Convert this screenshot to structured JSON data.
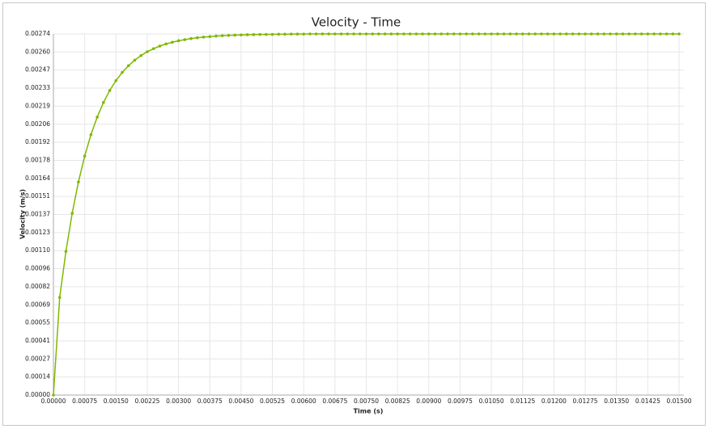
{
  "chart_data": {
    "type": "line",
    "title": "Velocity - Time",
    "x_label": "Time (s)",
    "y_label": "Velocity (m/s)",
    "grid": true,
    "xlim": [
      0,
      0.015
    ],
    "ylim": [
      0,
      0.00274
    ],
    "xticks": [
      {
        "value": 0,
        "label": "0.00000"
      },
      0.00075,
      {
        "value": 0.0015,
        "label": "0.00150"
      },
      0.00225,
      {
        "value": 0.003,
        "label": "0.00300"
      },
      0.00375,
      {
        "value": 0.0045,
        "label": "0.00450"
      },
      0.00525,
      {
        "value": 0.006,
        "label": "0.00600"
      },
      0.00675,
      {
        "value": 0.0075,
        "label": "0.00750"
      },
      0.00825,
      {
        "value": 0.009,
        "label": "0.00900"
      },
      0.00975,
      {
        "value": 0.0105,
        "label": "0.01050"
      },
      0.01125,
      {
        "value": 0.012,
        "label": "0.01200"
      },
      0.01275,
      {
        "value": 0.0135,
        "label": "0.01350"
      },
      0.01425,
      {
        "value": 0.015,
        "label": "0.01500"
      }
    ],
    "yticks": [
      {
        "value": 0,
        "label": "0.00000"
      },
      {
        "value": 0.000137,
        "label": "0.00014"
      },
      {
        "value": 0.000274,
        "label": "0.00027"
      },
      {
        "value": 0.000411,
        "label": "0.00041"
      },
      {
        "value": 0.000548,
        "label": "0.00055"
      },
      {
        "value": 0.000685,
        "label": "0.00069"
      },
      {
        "value": 0.000822,
        "label": "0.00082"
      },
      {
        "value": 0.000959,
        "label": "0.00096"
      },
      {
        "value": 0.001096,
        "label": "0.00110"
      },
      {
        "value": 0.001233,
        "label": "0.00123"
      },
      0.00137,
      {
        "value": 0.001507,
        "label": "0.00151"
      },
      {
        "value": 0.001644,
        "label": "0.00164"
      },
      {
        "value": 0.001781,
        "label": "0.00178"
      },
      {
        "value": 0.001918,
        "label": "0.00192"
      },
      {
        "value": 0.002055,
        "label": "0.00206"
      },
      {
        "value": 0.002192,
        "label": "0.00219"
      },
      {
        "value": 0.002329,
        "label": "0.00233"
      },
      {
        "value": 0.002466,
        "label": "0.00247"
      },
      {
        "value": 0.002603,
        "label": "0.00260"
      },
      0.00274
    ],
    "x": [
      0,
      0.00015,
      0.0003,
      0.00045,
      0.0006,
      0.00075,
      0.0009,
      0.00105,
      0.0012,
      0.00135,
      0.0015,
      0.00165,
      0.0018,
      0.00195,
      0.0021,
      0.00225,
      0.0024,
      0.00255,
      0.0027,
      0.00285,
      0.003,
      0.00315,
      0.0033,
      0.00345,
      0.0036,
      0.00375,
      0.0039,
      0.00405,
      0.0042,
      0.00435,
      0.0045,
      0.00465,
      0.0048,
      0.00495,
      0.0051,
      0.00525,
      0.0054,
      0.00555,
      0.0057,
      0.00585,
      0.006,
      0.00615,
      0.0063,
      0.00645,
      0.0066,
      0.00675,
      0.0069,
      0.00705,
      0.0072,
      0.00735,
      0.0075,
      0.00765,
      0.0078,
      0.00795,
      0.0081,
      0.00825,
      0.0084,
      0.00855,
      0.0087,
      0.00885,
      0.009,
      0.00915,
      0.0093,
      0.00945,
      0.0096,
      0.00975,
      0.0099,
      0.01005,
      0.0102,
      0.01035,
      0.0105,
      0.01065,
      0.0108,
      0.01095,
      0.0111,
      0.01125,
      0.0114,
      0.01155,
      0.0117,
      0.01185,
      0.012,
      0.01215,
      0.0123,
      0.01245,
      0.0126,
      0.01275,
      0.0129,
      0.01305,
      0.0132,
      0.01335,
      0.0135,
      0.01365,
      0.0138,
      0.01395,
      0.0141,
      0.01425,
      0.0144,
      0.01455,
      0.0147,
      0.01485,
      0.015
    ],
    "series": [
      {
        "color": "#7fb800",
        "values": [
          0,
          0.00074,
          0.00109,
          0.001379,
          0.001617,
          0.001813,
          0.001976,
          0.002109,
          0.00222,
          0.002311,
          0.002386,
          0.002448,
          0.002499,
          0.002541,
          0.002576,
          0.002605,
          0.002628,
          0.002648,
          0.002664,
          0.002677,
          0.002688,
          0.002697,
          0.002705,
          0.002711,
          0.002716,
          0.00272,
          0.002724,
          0.002727,
          0.002729,
          0.002731,
          0.002732,
          0.002734,
          0.002735,
          0.002736,
          0.002736,
          0.002737,
          0.002738,
          0.002738,
          0.002739,
          0.002739,
          0.002739,
          0.00274,
          0.00274,
          0.00274,
          0.00274,
          0.00274,
          0.00274,
          0.00274,
          0.00274,
          0.00274,
          0.00274,
          0.00274,
          0.00274,
          0.00274,
          0.00274,
          0.00274,
          0.00274,
          0.00274,
          0.00274,
          0.00274,
          0.00274,
          0.00274,
          0.00274,
          0.00274,
          0.00274,
          0.00274,
          0.00274,
          0.00274,
          0.00274,
          0.00274,
          0.00274,
          0.00274,
          0.00274,
          0.00274,
          0.00274,
          0.00274,
          0.00274,
          0.00274,
          0.00274,
          0.00274,
          0.00274,
          0.00274,
          0.00274,
          0.00274,
          0.00274,
          0.00274,
          0.00274,
          0.00274,
          0.00274,
          0.00274,
          0.00274,
          0.00274,
          0.00274,
          0.00274,
          0.00274,
          0.00274,
          0.00274,
          0.00274,
          0.00274,
          0.00274,
          0.00274
        ]
      }
    ]
  }
}
